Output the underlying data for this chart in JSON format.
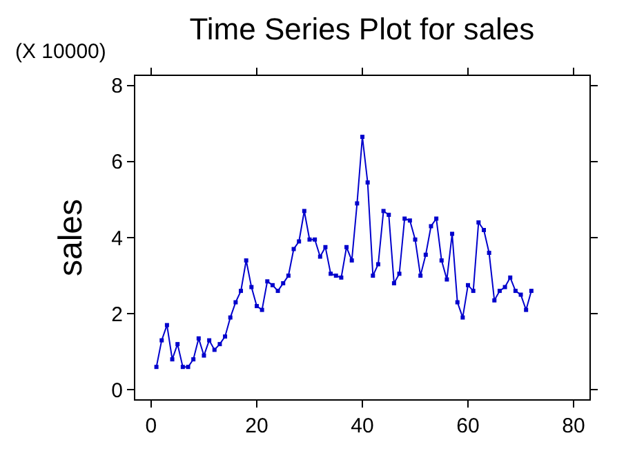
{
  "chart_data": {
    "type": "line",
    "title": "Time Series Plot for sales",
    "ylabel": "sales",
    "annotations": [
      "(X 10000)"
    ],
    "x": [
      1,
      2,
      3,
      4,
      5,
      6,
      7,
      8,
      9,
      10,
      11,
      12,
      13,
      14,
      15,
      16,
      17,
      18,
      19,
      20,
      21,
      22,
      23,
      24,
      25,
      26,
      27,
      28,
      29,
      30,
      31,
      32,
      33,
      34,
      35,
      36,
      37,
      38,
      39,
      40,
      41,
      42,
      43,
      44,
      45,
      46,
      47,
      48,
      49,
      50,
      51,
      52,
      53,
      54,
      55,
      56,
      57,
      58,
      59,
      60,
      61,
      62,
      63,
      64,
      65,
      66,
      67,
      68,
      69,
      70,
      71,
      72
    ],
    "series": [
      {
        "color": "#0000cc",
        "values": [
          0.6,
          1.3,
          1.7,
          0.8,
          1.2,
          0.6,
          0.6,
          0.8,
          1.35,
          0.9,
          1.3,
          1.05,
          1.2,
          1.4,
          1.9,
          2.3,
          2.6,
          3.4,
          2.7,
          2.2,
          2.1,
          2.85,
          2.75,
          2.6,
          2.8,
          3.0,
          3.7,
          3.9,
          4.7,
          3.95,
          3.95,
          3.5,
          3.75,
          3.05,
          3.0,
          2.95,
          3.75,
          3.4,
          4.9,
          6.65,
          5.45,
          3.0,
          3.3,
          4.7,
          4.6,
          2.8,
          3.05,
          4.5,
          4.45,
          3.95,
          3.0,
          3.55,
          4.3,
          4.5,
          3.4,
          2.9,
          4.1,
          2.3,
          1.9,
          2.75,
          2.6,
          4.4,
          4.2,
          3.6,
          2.35,
          2.6,
          2.7,
          2.95,
          2.6,
          2.5,
          2.1,
          2.6
        ]
      }
    ],
    "xlim": [
      -3,
      83
    ],
    "xticks": [
      0,
      20,
      40,
      60,
      80
    ],
    "ylim": [
      -0.25,
      8.25
    ],
    "yticks": [
      0,
      2,
      4,
      6,
      8
    ],
    "grid": false,
    "marker": "square",
    "line_style": "solid"
  }
}
